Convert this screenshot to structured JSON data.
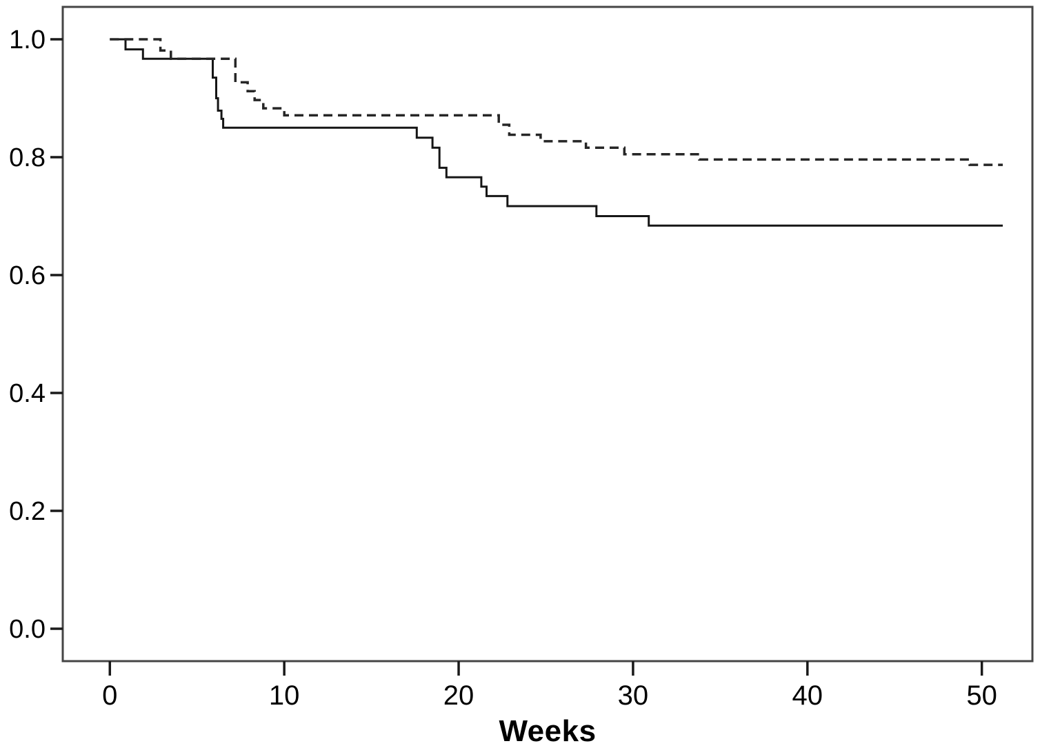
{
  "figure": {
    "background_color": "#ffffff",
    "plot_border_color": "#454545",
    "tick_color": "#1a1a1a",
    "text_color": "#000000"
  },
  "chart_data": {
    "type": "line",
    "subtype": "kaplan_meier_step",
    "title": "",
    "xlabel": "Weeks",
    "ylabel": "",
    "legend": "none",
    "grid": false,
    "xlim": [
      -2.7,
      52.9
    ],
    "ylim": [
      -0.055,
      1.055
    ],
    "x_ticks": [
      {
        "value": 0,
        "label": "0"
      },
      {
        "value": 10,
        "label": "10"
      },
      {
        "value": 20,
        "label": "20"
      },
      {
        "value": 30,
        "label": "30"
      },
      {
        "value": 40,
        "label": "40"
      },
      {
        "value": 50,
        "label": "50"
      }
    ],
    "y_ticks": [
      {
        "value": 0.0,
        "label": "0.0"
      },
      {
        "value": 0.2,
        "label": "0.2"
      },
      {
        "value": 0.4,
        "label": "0.4"
      },
      {
        "value": 0.6,
        "label": "0.6"
      },
      {
        "value": 0.8,
        "label": "0.8"
      },
      {
        "value": 1.0,
        "label": "1.0"
      }
    ],
    "x_end": 51.2,
    "series": [
      {
        "name": "solid-group",
        "style": "solid",
        "color": "#161616",
        "stroke_width": 3,
        "points": [
          [
            0,
            1.0
          ],
          [
            0.9,
            0.983
          ],
          [
            1.9,
            0.967
          ],
          [
            5.9,
            0.935
          ],
          [
            6.1,
            0.9
          ],
          [
            6.2,
            0.879
          ],
          [
            6.4,
            0.865
          ],
          [
            6.5,
            0.85
          ],
          [
            17.6,
            0.833
          ],
          [
            18.5,
            0.816
          ],
          [
            18.9,
            0.782
          ],
          [
            19.3,
            0.766
          ],
          [
            21.3,
            0.75
          ],
          [
            21.6,
            0.734
          ],
          [
            22.8,
            0.717
          ],
          [
            27.9,
            0.7
          ],
          [
            30.9,
            0.684
          ]
        ]
      },
      {
        "name": "dashed-group",
        "style": "dashed",
        "color": "#262626",
        "stroke_width": 3.5,
        "dash_pattern": "13 8",
        "points": [
          [
            0,
            1.0
          ],
          [
            2.9,
            0.981
          ],
          [
            3.5,
            0.967
          ],
          [
            7.2,
            0.927
          ],
          [
            7.9,
            0.912
          ],
          [
            8.3,
            0.897
          ],
          [
            8.8,
            0.883
          ],
          [
            10.0,
            0.871
          ],
          [
            22.3,
            0.855
          ],
          [
            22.9,
            0.838
          ],
          [
            24.7,
            0.827
          ],
          [
            27.3,
            0.816
          ],
          [
            29.5,
            0.805
          ],
          [
            33.8,
            0.796
          ],
          [
            49.3,
            0.787
          ]
        ]
      }
    ]
  }
}
